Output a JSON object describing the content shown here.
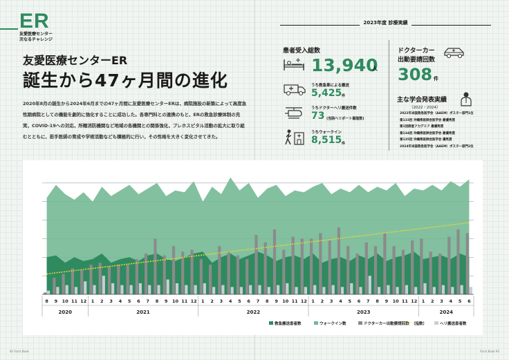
{
  "header": {
    "mark": "ER",
    "subtitle_line1": "友愛医療センター",
    "subtitle_line2": "次なるチャレンジ",
    "title_line1": "友愛医療センターER",
    "title_line2": "誕生から47ヶ月間の進化",
    "intro": "2020年8月の誕生から2024年6月までの47ヶ月間に友愛医療センターERは，病院施設の新築によって高度急性期病院としての機能を劇的に強化することに成功した。各専門科との連携のもと，ERの救急診療体制の充実，COVID-19への対応，所轄消防機関など地域の各機関との関係強化，プレホスピタル活動の拡大に取り組むとともに，若手医師の育成や学術活動なども積極的に行い，その性格を大きく変化させてきた。"
  },
  "stats": {
    "section_title": "2023年度 診療実績",
    "patients_label": "患者受入総数",
    "patients_value": "13,940",
    "patients_unit": "人",
    "ambulance_label": "うち救急車による搬送",
    "ambulance_value": "5,425",
    "ambulance_unit": "件",
    "heli_label": "うちドクターヘリ搬送件数",
    "heli_value": "73",
    "heli_unit": "(当院ヘリポート着陸数)",
    "walkin_label": "うちウォークイン",
    "walkin_value": "8,515",
    "walkin_unit": "件",
    "doctorcar_label1": "ドクターカー",
    "doctorcar_label2": "出動要請回数",
    "doctorcar_value": "308",
    "doctorcar_unit": "件"
  },
  "conferences": {
    "title": "主な学会発表実績",
    "period": "（2022・2024）",
    "items": [
      "2022年米国救急医学会（AAEM）ポスター部門1位",
      "第133回 沖縄県医師会医学会 最優秀賞",
      "第1回群星アカデミア 最優秀賞",
      "第134回 沖縄県医師会医学会 最優秀賞",
      "第135回 沖縄県医師会医学会 優秀賞",
      "2024年米国救急医学会（AAEM）ポスター部門2位"
    ]
  },
  "icons": {
    "patients": "hospital-bed-icon",
    "ambulance": "ambulance-icon",
    "heli": "helicopter-icon",
    "walkin": "walking-person-icon",
    "doctorcar": "doctor-car-icon",
    "conference": "presenter-icon"
  },
  "colors": {
    "accent": "#2f8a5f",
    "ambulance_area": "#2f8a5f",
    "walkin_area": "#74b996",
    "doctorcar_bar": "#8b8b8b",
    "heli_bar": "#c7ced6",
    "trend": "#e4d43a"
  },
  "footer": {
    "left": "92 Facts Book",
    "right": "Facts Book 93"
  },
  "chart_data": {
    "type": "area",
    "months": [
      "8",
      "9",
      "10",
      "11",
      "12",
      "1",
      "2",
      "3",
      "4",
      "5",
      "6",
      "7",
      "8",
      "9",
      "10",
      "11",
      "12",
      "1",
      "2",
      "3",
      "4",
      "5",
      "6",
      "7",
      "8",
      "9",
      "10",
      "11",
      "12",
      "1",
      "2",
      "3",
      "4",
      "5",
      "6",
      "7",
      "8",
      "9",
      "10",
      "11",
      "12",
      "1",
      "2",
      "3",
      "4",
      "5",
      "6"
    ],
    "years": [
      {
        "label": "2020",
        "count": 5
      },
      {
        "label": "2021",
        "count": 12
      },
      {
        "label": "2022",
        "count": 12
      },
      {
        "label": "2023",
        "count": 12
      },
      {
        "label": "2024",
        "count": 6
      }
    ],
    "grid": true,
    "legend_position": "bottom-right",
    "series": [
      {
        "name": "救急搬送患者数",
        "kind": "area",
        "color": "#2f8a5f",
        "values": [
          2,
          2.1,
          1.7,
          2.0,
          1.8,
          1.9,
          2.2,
          1.7,
          1.9,
          2.0,
          1.8,
          2.1,
          2.2,
          1.9,
          1.8,
          2.0,
          2.2,
          2.3,
          1.7,
          2.0,
          2.2,
          1.9,
          2.1,
          2.3,
          2.1,
          1.8,
          2.0,
          2.1,
          1.9,
          2.2,
          1.7,
          1.9,
          2.0,
          1.8,
          2.1,
          1.9,
          2.2,
          1.8,
          2.0,
          2.1,
          2.3,
          1.9,
          2.0,
          2.1,
          1.9,
          2.2,
          2.0
        ]
      },
      {
        "name": "ウォークイン数",
        "kind": "area",
        "color": "#74b996",
        "values": [
          5.2,
          5.9,
          5.4,
          5.1,
          5.5,
          5.0,
          5.8,
          5.3,
          5.6,
          5.9,
          5.4,
          5.7,
          6.0,
          5.3,
          5.6,
          5.5,
          6.1,
          5.0,
          5.8,
          5.4,
          6.3,
          5.6,
          6.0,
          5.2,
          5.7,
          5.9,
          5.3,
          5.6,
          5.5,
          5.8,
          6.0,
          5.4,
          5.7,
          5.5,
          5.9,
          5.5,
          5.8,
          5.6,
          6.0,
          5.3,
          5.7,
          5.6,
          5.9,
          5.6,
          6.1,
          5.8,
          6.2
        ]
      },
      {
        "name": "ドクターカー出動要請回数",
        "kind": "bar",
        "color": "#8b8b8b",
        "values": [
          0.1,
          0.9,
          1.1,
          1.4,
          1.3,
          1.6,
          1.7,
          1.5,
          1.6,
          1.6,
          1.9,
          2.2,
          3.0,
          2.1,
          2.6,
          2.3,
          2.4,
          1.9,
          1.6,
          2.6,
          2.3,
          2.1,
          1.9,
          3.2,
          2.8,
          3.5,
          2.4,
          3.1,
          3.0,
          3.0,
          3.3,
          2.9,
          3.6,
          2.6,
          2.2,
          2.8,
          2.6,
          3.3,
          2.6,
          2.4,
          2.9,
          3.0,
          2.3,
          2.2,
          3.1,
          3.5,
          3.3
        ]
      },
      {
        "name": "ヘリ搬送患者数",
        "kind": "bar",
        "color": "#c7ced6",
        "values": [
          0.2,
          0.4,
          0.5,
          0.4,
          0.7,
          0.5,
          1.0,
          0.6,
          0.5,
          0.5,
          0.6,
          0.5,
          0.5,
          0.8,
          0.6,
          0.5,
          0.5,
          0.6,
          0.4,
          0.5,
          0.4,
          0.4,
          0.5,
          0.5,
          0.4,
          0.5,
          0.6,
          0.4,
          0.4,
          0.5,
          0.4,
          0.5,
          0.4,
          0.6,
          0.4,
          1.0,
          0.4,
          0.5,
          0.4,
          0.5,
          0.4,
          0.6,
          0.4,
          0.5,
          0.4,
          0.5,
          0.4
        ]
      },
      {
        "name": "（指数）",
        "kind": "trend",
        "color": "#e4d43a",
        "values": [
          1.1,
          1.16,
          1.22,
          1.28,
          1.34,
          1.4,
          1.46,
          1.52,
          1.58,
          1.64,
          1.7,
          1.76,
          1.82,
          1.88,
          1.94,
          2.0,
          2.06,
          2.12,
          2.18,
          2.24,
          2.3,
          2.36,
          2.42,
          2.48,
          2.54,
          2.6,
          2.66,
          2.72,
          2.78,
          2.84,
          2.9,
          2.96,
          3.02,
          3.08,
          3.14,
          3.2,
          3.26,
          3.32,
          3.38,
          3.44,
          3.5,
          3.56,
          3.62,
          3.68,
          3.74,
          3.8,
          3.86
        ]
      }
    ],
    "ylim": [
      0,
      7
    ]
  }
}
